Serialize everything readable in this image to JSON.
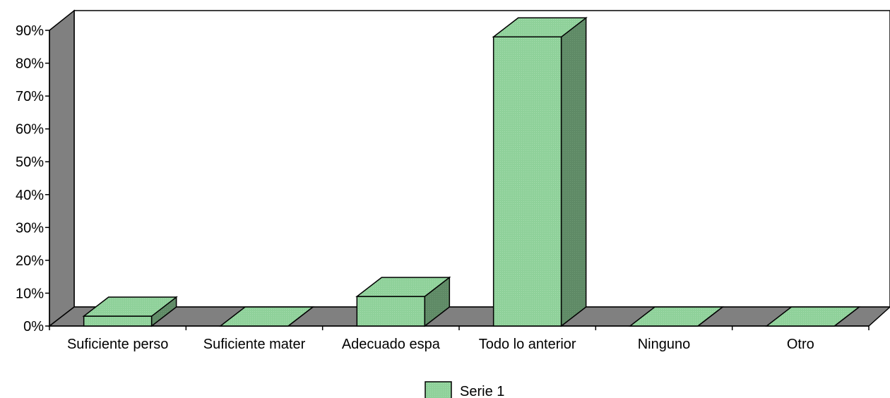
{
  "chart_data": {
    "type": "bar",
    "categories": [
      "Suficiente perso",
      "Suficiente mater",
      "Adecuado espa",
      "Todo lo anterior",
      "Ninguno",
      "Otro"
    ],
    "series": [
      {
        "name": "Serie 1",
        "values": [
          3,
          0,
          9,
          88,
          0,
          0
        ]
      }
    ],
    "ylim": [
      0,
      90
    ],
    "yticks": [
      "0%",
      "10%",
      "20%",
      "30%",
      "40%",
      "50%",
      "60%",
      "70%",
      "80%",
      "90%"
    ],
    "grid": false,
    "legend": "bottom-center",
    "colors": {
      "bar_front": "#8fd19a",
      "bar_top": "#8fd19a",
      "bar_side": "#5a8060",
      "wall": "#808080",
      "floor": "#808080"
    }
  }
}
